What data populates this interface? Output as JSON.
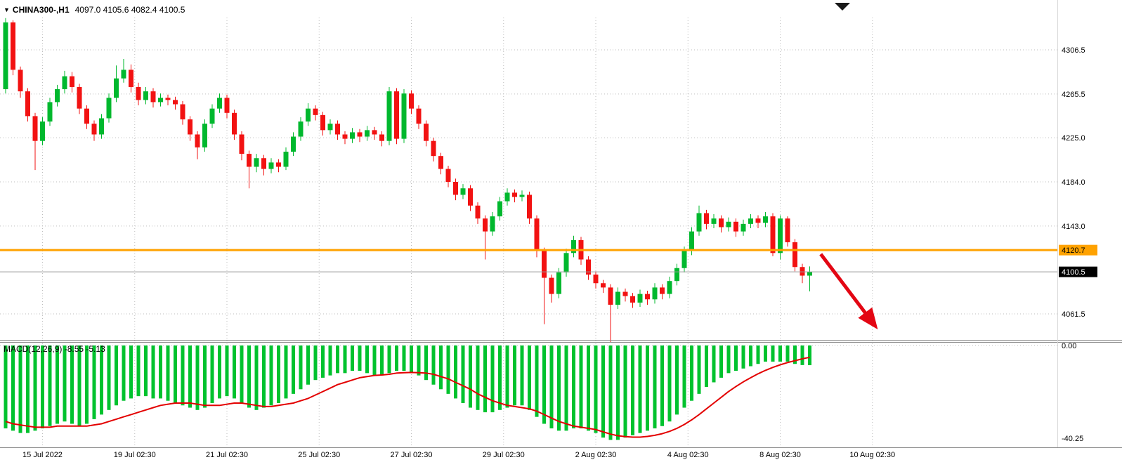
{
  "header": {
    "dropdown_icon": "▼",
    "symbol_info": "CHINA300-,H1",
    "ohlc": "4097.0 4105.6 4082.4 4100.5"
  },
  "macd_panel": {
    "label": "MACD(12,26,9)",
    "values": "-8.55 -5.13"
  },
  "colors": {
    "bull": "#00b82e",
    "bear": "#f21212",
    "macd_hist": "#00c22e",
    "signal": "#e30000",
    "hline": "#ffa200",
    "grid": "#bdbdbd",
    "price_line": "#9a9a9a",
    "price_label_bg": "#000000",
    "price_label_fg": "#ffffff",
    "hline_label_fg": "#000000",
    "arrow": "#e30613",
    "divider": "#8c8c8c",
    "text": "#000000",
    "bg": "#ffffff"
  },
  "chart_data": {
    "type": "candlestick",
    "title": "CHINA300-,H1",
    "symbol": "CHINA300-",
    "timeframe": "H1",
    "current_bar": {
      "open": 4097.0,
      "high": 4105.6,
      "low": 4082.4,
      "close": 4100.5
    },
    "y_axis_ticks": [
      4306.5,
      4265.5,
      4225.0,
      4184.0,
      4143.0,
      4061.5
    ],
    "orange_hline": 4120.7,
    "current_price": 4100.5,
    "x_axis_labels": [
      {
        "label": "15 Jul 2022",
        "index": 5
      },
      {
        "label": "19 Jul 02:30",
        "index": 17.5
      },
      {
        "label": "21 Jul 02:30",
        "index": 30
      },
      {
        "label": "25 Jul 02:30",
        "index": 42.5
      },
      {
        "label": "27 Jul 02:30",
        "index": 55
      },
      {
        "label": "29 Jul 02:30",
        "index": 67.5
      },
      {
        "label": "2 Aug 02:30",
        "index": 80
      },
      {
        "label": "4 Aug 02:30",
        "index": 92.5
      },
      {
        "label": "8 Aug 02:30",
        "index": 105
      },
      {
        "label": "10 Aug 02:30",
        "index": 117.5
      }
    ],
    "candles": [
      [
        4270,
        4336,
        4266,
        4332
      ],
      [
        4332,
        4334,
        4283,
        4288
      ],
      [
        4288,
        4291,
        4262,
        4268
      ],
      [
        4268,
        4271,
        4240,
        4245
      ],
      [
        4245,
        4248,
        4195,
        4222
      ],
      [
        4222,
        4244,
        4218,
        4240
      ],
      [
        4240,
        4262,
        4236,
        4258
      ],
      [
        4258,
        4274,
        4254,
        4270
      ],
      [
        4270,
        4287,
        4266,
        4282
      ],
      [
        4282,
        4286,
        4267,
        4272
      ],
      [
        4272,
        4275,
        4247,
        4252
      ],
      [
        4252,
        4255,
        4233,
        4238
      ],
      [
        4238,
        4241,
        4222,
        4228
      ],
      [
        4228,
        4247,
        4224,
        4243
      ],
      [
        4243,
        4266,
        4239,
        4262
      ],
      [
        4262,
        4292,
        4258,
        4280
      ],
      [
        4280,
        4298,
        4276,
        4288
      ],
      [
        4288,
        4293,
        4267,
        4272
      ],
      [
        4272,
        4276,
        4255,
        4260
      ],
      [
        4260,
        4272,
        4256,
        4268
      ],
      [
        4268,
        4271,
        4253,
        4258
      ],
      [
        4258,
        4266,
        4254,
        4262
      ],
      [
        4262,
        4265,
        4255,
        4260
      ],
      [
        4260,
        4263,
        4251,
        4256
      ],
      [
        4256,
        4259,
        4237,
        4242
      ],
      [
        4242,
        4245,
        4222,
        4228
      ],
      [
        4228,
        4231,
        4205,
        4216
      ],
      [
        4216,
        4242,
        4212,
        4238
      ],
      [
        4238,
        4256,
        4234,
        4252
      ],
      [
        4252,
        4266,
        4248,
        4262
      ],
      [
        4262,
        4265,
        4243,
        4248
      ],
      [
        4248,
        4251,
        4223,
        4228
      ],
      [
        4228,
        4231,
        4204,
        4210
      ],
      [
        4210,
        4213,
        4178,
        4198
      ],
      [
        4198,
        4210,
        4193,
        4206
      ],
      [
        4206,
        4209,
        4190,
        4196
      ],
      [
        4196,
        4206,
        4192,
        4202
      ],
      [
        4202,
        4205,
        4193,
        4198
      ],
      [
        4198,
        4216,
        4195,
        4212
      ],
      [
        4212,
        4230,
        4208,
        4226
      ],
      [
        4226,
        4244,
        4222,
        4240
      ],
      [
        4240,
        4257,
        4236,
        4252
      ],
      [
        4252,
        4255,
        4241,
        4246
      ],
      [
        4246,
        4249,
        4227,
        4232
      ],
      [
        4232,
        4242,
        4228,
        4238
      ],
      [
        4238,
        4241,
        4223,
        4228
      ],
      [
        4228,
        4231,
        4219,
        4224
      ],
      [
        4224,
        4234,
        4220,
        4230
      ],
      [
        4230,
        4233,
        4221,
        4226
      ],
      [
        4226,
        4236,
        4222,
        4232
      ],
      [
        4232,
        4235,
        4223,
        4228
      ],
      [
        4228,
        4231,
        4217,
        4222
      ],
      [
        4222,
        4272,
        4218,
        4268
      ],
      [
        4268,
        4271,
        4219,
        4224
      ],
      [
        4224,
        4270,
        4220,
        4266
      ],
      [
        4266,
        4269,
        4247,
        4252
      ],
      [
        4252,
        4255,
        4233,
        4238
      ],
      [
        4238,
        4241,
        4217,
        4222
      ],
      [
        4222,
        4225,
        4203,
        4208
      ],
      [
        4208,
        4211,
        4191,
        4196
      ],
      [
        4196,
        4199,
        4179,
        4184
      ],
      [
        4184,
        4187,
        4167,
        4172
      ],
      [
        4172,
        4182,
        4168,
        4178
      ],
      [
        4178,
        4181,
        4157,
        4162
      ],
      [
        4162,
        4165,
        4145,
        4150
      ],
      [
        4150,
        4153,
        4112,
        4138
      ],
      [
        4138,
        4156,
        4134,
        4152
      ],
      [
        4152,
        4170,
        4148,
        4166
      ],
      [
        4166,
        4178,
        4162,
        4174
      ],
      [
        4174,
        4177,
        4165,
        4170
      ],
      [
        4170,
        4176,
        4166,
        4172
      ],
      [
        4172,
        4175,
        4145,
        4150
      ],
      [
        4150,
        4153,
        4114,
        4120
      ],
      [
        4120,
        4123,
        4052,
        4095
      ],
      [
        4095,
        4098,
        4072,
        4080
      ],
      [
        4080,
        4104,
        4076,
        4100
      ],
      [
        4100,
        4122,
        4096,
        4118
      ],
      [
        4118,
        4134,
        4114,
        4130
      ],
      [
        4130,
        4133,
        4107,
        4112
      ],
      [
        4112,
        4115,
        4093,
        4098
      ],
      [
        4098,
        4101,
        4085,
        4090
      ],
      [
        4090,
        4093,
        4081,
        4086
      ],
      [
        4086,
        4089,
        4035,
        4070
      ],
      [
        4070,
        4086,
        4066,
        4082
      ],
      [
        4082,
        4085,
        4073,
        4078
      ],
      [
        4078,
        4081,
        4067,
        4072
      ],
      [
        4072,
        4084,
        4068,
        4080
      ],
      [
        4080,
        4083,
        4070,
        4075
      ],
      [
        4075,
        4090,
        4071,
        4086
      ],
      [
        4086,
        4089,
        4075,
        4080
      ],
      [
        4080,
        4096,
        4076,
        4092
      ],
      [
        4092,
        4108,
        4088,
        4104
      ],
      [
        4104,
        4124,
        4100,
        4120
      ],
      [
        4120,
        4142,
        4116,
        4138
      ],
      [
        4138,
        4162,
        4134,
        4155
      ],
      [
        4155,
        4158,
        4140,
        4145
      ],
      [
        4145,
        4154,
        4141,
        4150
      ],
      [
        4150,
        4153,
        4137,
        4142
      ],
      [
        4142,
        4151,
        4138,
        4147
      ],
      [
        4147,
        4150,
        4133,
        4138
      ],
      [
        4138,
        4149,
        4134,
        4145
      ],
      [
        4145,
        4154,
        4141,
        4150
      ],
      [
        4150,
        4153,
        4141,
        4146
      ],
      [
        4146,
        4156,
        4142,
        4152
      ],
      [
        4152,
        4155,
        4115,
        4118
      ],
      [
        4118,
        4153,
        4112,
        4150
      ],
      [
        4150,
        4152,
        4124,
        4128
      ],
      [
        4128,
        4131,
        4101,
        4105
      ],
      [
        4105,
        4108,
        4090,
        4097
      ],
      [
        4097,
        4105.6,
        4082.4,
        4100.5
      ]
    ],
    "macd": {
      "params": "12,26,9",
      "main_current": -8.55,
      "signal_current": -5.13,
      "axis_ticks": [
        {
          "label": "0.00",
          "value": 0
        },
        {
          "label": "-40.25",
          "value": -40.25
        }
      ],
      "histogram": [
        -36,
        -37,
        -38,
        -38,
        -37,
        -36,
        -35,
        -34,
        -33,
        -34,
        -35,
        -34,
        -32,
        -30,
        -28,
        -26,
        -24,
        -23,
        -22,
        -22,
        -23,
        -23,
        -24,
        -25,
        -26,
        -27,
        -28,
        -27,
        -25,
        -23,
        -22,
        -23,
        -25,
        -27,
        -28,
        -27,
        -26,
        -25,
        -23,
        -21,
        -19,
        -17,
        -15,
        -14,
        -13,
        -12,
        -12,
        -11,
        -11,
        -12,
        -13,
        -13,
        -12,
        -11,
        -11,
        -12,
        -13,
        -15,
        -17,
        -19,
        -21,
        -23,
        -25,
        -27,
        -28,
        -29,
        -29,
        -28,
        -27,
        -26,
        -26,
        -28,
        -31,
        -34,
        -36,
        -37,
        -37,
        -36,
        -36,
        -37,
        -38,
        -40,
        -41,
        -41,
        -40,
        -39,
        -38,
        -37,
        -36,
        -35,
        -33,
        -30,
        -27,
        -24,
        -21,
        -18,
        -16,
        -14,
        -12,
        -11,
        -10,
        -9,
        -8,
        -7,
        -7,
        -7,
        -7,
        -8,
        -8.5,
        -8.55
      ],
      "signal": [
        -33,
        -34,
        -34.5,
        -35,
        -35.5,
        -35.5,
        -35.5,
        -35,
        -35,
        -35,
        -35,
        -35,
        -34.5,
        -34,
        -33,
        -32,
        -31,
        -30,
        -29,
        -28,
        -27,
        -26,
        -25.5,
        -25,
        -25,
        -25,
        -25.5,
        -26,
        -26,
        -26,
        -25.5,
        -25,
        -25,
        -25.5,
        -26,
        -26.5,
        -26.5,
        -26,
        -25.5,
        -25,
        -24,
        -23,
        -21.5,
        -20,
        -18.5,
        -17,
        -16,
        -15,
        -14,
        -13.5,
        -13,
        -12.8,
        -12.5,
        -12,
        -11.8,
        -11.7,
        -11.8,
        -12,
        -12.5,
        -13.5,
        -14.5,
        -16,
        -17.5,
        -19,
        -21,
        -22.5,
        -24,
        -25,
        -26,
        -26.5,
        -27,
        -27.5,
        -28.5,
        -30,
        -31.5,
        -33,
        -34,
        -35,
        -35.5,
        -36,
        -36.5,
        -37.5,
        -38.5,
        -39.2,
        -39.6,
        -39.8,
        -39.8,
        -39.5,
        -39,
        -38.3,
        -37.3,
        -36,
        -34.3,
        -32.3,
        -30,
        -27.5,
        -25,
        -22.5,
        -20,
        -17.8,
        -15.8,
        -14,
        -12.3,
        -10.8,
        -9.5,
        -8.4,
        -7.4,
        -6.6,
        -5.8,
        -5.13
      ]
    },
    "annotations": {
      "red_arrow": {
        "from": {
          "index": 110.5,
          "price": 4117
        },
        "to": {
          "index": 117.8,
          "price": 4051
        }
      }
    }
  }
}
